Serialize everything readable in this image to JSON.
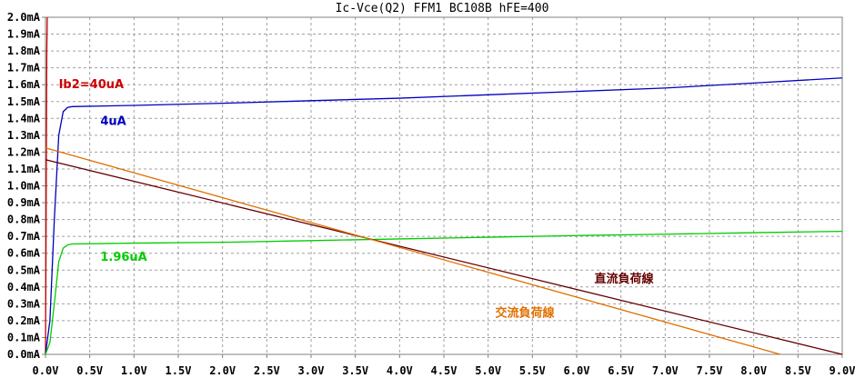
{
  "chart_data": {
    "type": "line",
    "title": "Ic-Vce(Q2) FFM1  BC108B hFE=400",
    "xlabel": "",
    "ylabel": "",
    "xlim": [
      0,
      9
    ],
    "ylim": [
      0,
      2.0
    ],
    "x_ticks": [
      "0.0V",
      "0.5V",
      "1.0V",
      "1.5V",
      "2.0V",
      "2.5V",
      "3.0V",
      "3.5V",
      "4.0V",
      "4.5V",
      "5.0V",
      "5.5V",
      "6.0V",
      "6.5V",
      "7.0V",
      "7.5V",
      "8.0V",
      "8.5V",
      "9.0V"
    ],
    "y_ticks": [
      "0.0mA",
      "0.1mA",
      "0.2mA",
      "0.3mA",
      "0.4mA",
      "0.5mA",
      "0.6mA",
      "0.7mA",
      "0.8mA",
      "0.9mA",
      "1.0mA",
      "1.1mA",
      "1.2mA",
      "1.3mA",
      "1.4mA",
      "1.5mA",
      "1.6mA",
      "1.7mA",
      "1.8mA",
      "1.9mA",
      "2.0mA"
    ],
    "grid": true,
    "series": [
      {
        "name": "Ib2=40uA",
        "color": "#cc0000",
        "points": [
          [
            0,
            0
          ],
          [
            0.005,
            0.5
          ],
          [
            0.01,
            1.2
          ],
          [
            0.015,
            1.8
          ],
          [
            0.02,
            2.0
          ]
        ]
      },
      {
        "name": "4uA",
        "color": "#0000c0",
        "points": [
          [
            0,
            0
          ],
          [
            0.05,
            0.2
          ],
          [
            0.1,
            0.8
          ],
          [
            0.15,
            1.3
          ],
          [
            0.2,
            1.44
          ],
          [
            0.25,
            1.465
          ],
          [
            0.3,
            1.47
          ],
          [
            1,
            1.477
          ],
          [
            2,
            1.49
          ],
          [
            3,
            1.505
          ],
          [
            4,
            1.52
          ],
          [
            5,
            1.54
          ],
          [
            6,
            1.56
          ],
          [
            7,
            1.58
          ],
          [
            8,
            1.61
          ],
          [
            9,
            1.64
          ]
        ]
      },
      {
        "name": "1.96uA",
        "color": "#00cc00",
        "points": [
          [
            0,
            0
          ],
          [
            0.05,
            0.07
          ],
          [
            0.1,
            0.3
          ],
          [
            0.15,
            0.55
          ],
          [
            0.2,
            0.63
          ],
          [
            0.25,
            0.65
          ],
          [
            0.3,
            0.655
          ],
          [
            1,
            0.66
          ],
          [
            2,
            0.665
          ],
          [
            3,
            0.675
          ],
          [
            4,
            0.685
          ],
          [
            5,
            0.695
          ],
          [
            6,
            0.705
          ],
          [
            7,
            0.713
          ],
          [
            8,
            0.722
          ],
          [
            9,
            0.73
          ]
        ]
      },
      {
        "name": "直流負荷線",
        "color": "#660000",
        "points": [
          [
            0,
            1.155
          ],
          [
            9,
            0
          ]
        ]
      },
      {
        "name": "交流負荷線",
        "color": "#e07000",
        "points": [
          [
            0,
            1.225
          ],
          [
            8.3,
            0
          ]
        ]
      }
    ],
    "annotations": [
      {
        "text": "Ib2=40uA",
        "x": 0.15,
        "y": 1.58,
        "color": "#cc0000"
      },
      {
        "text": "4uA",
        "x": 0.62,
        "y": 1.36,
        "color": "#0000c0"
      },
      {
        "text": "1.96uA",
        "x": 0.62,
        "y": 0.555,
        "color": "#00cc00"
      },
      {
        "text": "直流負荷線",
        "x": 6.2,
        "y": 0.425,
        "color": "#660000"
      },
      {
        "text": "交流負荷線",
        "x": 5.08,
        "y": 0.225,
        "color": "#e07000"
      }
    ]
  }
}
